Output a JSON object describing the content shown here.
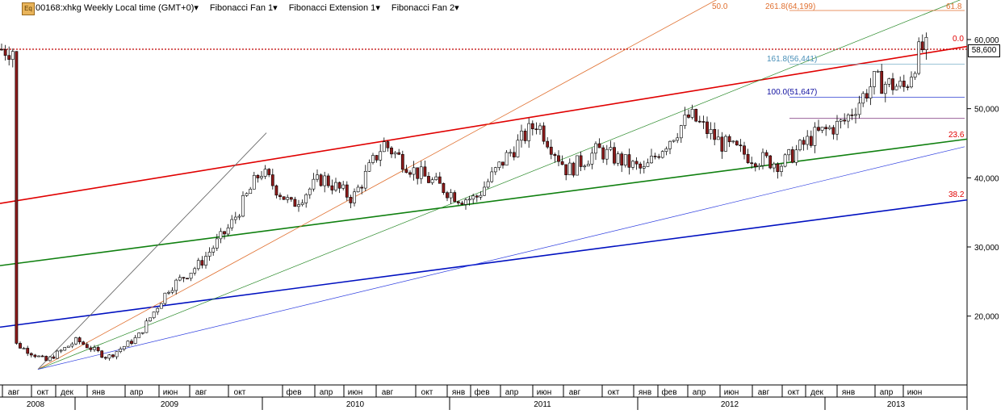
{
  "header": {
    "symbol_title": "00168:xhkg Weekly Local time (GMT+0)",
    "tool_1": "Fibonacci Fan 1",
    "tool_2": "Fibonacci Extension 1",
    "tool_3": "Fibonacci Fan 2",
    "logo_text": "Eq"
  },
  "price_tag": "58,600",
  "colors": {
    "up_candle": "#ffffff",
    "down_candle": "#8b1a1a",
    "red_line": "#e00000",
    "green_line": "#108010",
    "blue_line": "#0010c0",
    "price_line": "#c00000",
    "fib_orange": "#e07030",
    "fib_green": "#2a8a2a",
    "fib_blue": "#3040e0"
  },
  "fib_labels": {
    "top_50": "50.0",
    "top_2618": "261.8(64,199)",
    "top_618": "61.8",
    "r_00": "0.0",
    "r_1618": "161.8(56,441)",
    "r_1000": "100.0(51,647)",
    "r_236": "23.6",
    "r_382": "38.2"
  },
  "chart_data": {
    "type": "candlestick",
    "title": "00168:xhkg Weekly",
    "ylim": [
      11000,
      66000
    ],
    "y_ticks": [
      20000,
      30000,
      40000,
      50000,
      60000
    ],
    "y_tick_labels": [
      "20,000",
      "30,000",
      "40,000",
      "50,000",
      "60,000"
    ],
    "current_price": 58600,
    "month_labels": [
      "авг",
      "окт",
      "дек",
      "янв",
      "апр",
      "июн",
      "авг",
      "окт",
      "фев",
      "апр",
      "июн",
      "авг",
      "окт",
      "янв",
      "фев",
      "апр",
      "июн",
      "авг",
      "окт",
      "янв",
      "фев",
      "апр",
      "июн",
      "авг",
      "окт",
      "дек",
      "янв",
      "апр",
      "июн"
    ],
    "year_labels": [
      "2008",
      "2009",
      "2010",
      "2011",
      "2012",
      "2013"
    ],
    "approx_close_path": [
      {
        "date": "2008-08",
        "value": 16000
      },
      {
        "date": "2008-10",
        "value": 13500
      },
      {
        "date": "2008-12",
        "value": 16500
      },
      {
        "date": "2009-02",
        "value": 14000
      },
      {
        "date": "2009-04",
        "value": 17000
      },
      {
        "date": "2009-06",
        "value": 24000
      },
      {
        "date": "2009-08",
        "value": 27500
      },
      {
        "date": "2009-10",
        "value": 33000
      },
      {
        "date": "2009-12",
        "value": 41000
      },
      {
        "date": "2010-02",
        "value": 36000
      },
      {
        "date": "2010-04",
        "value": 40000
      },
      {
        "date": "2010-06",
        "value": 37000
      },
      {
        "date": "2010-08",
        "value": 45000
      },
      {
        "date": "2010-10",
        "value": 41000
      },
      {
        "date": "2011-01",
        "value": 37000
      },
      {
        "date": "2011-02",
        "value": 37000
      },
      {
        "date": "2011-04",
        "value": 43000
      },
      {
        "date": "2011-06",
        "value": 48000
      },
      {
        "date": "2011-08",
        "value": 41000
      },
      {
        "date": "2011-10",
        "value": 44000
      },
      {
        "date": "2012-01",
        "value": 41000
      },
      {
        "date": "2012-02",
        "value": 44000
      },
      {
        "date": "2012-04",
        "value": 49000
      },
      {
        "date": "2012-06",
        "value": 45000
      },
      {
        "date": "2012-08",
        "value": 43000
      },
      {
        "date": "2012-10",
        "value": 42000
      },
      {
        "date": "2012-12",
        "value": 46000
      },
      {
        "date": "2013-02",
        "value": 48000
      },
      {
        "date": "2013-04",
        "value": 54000
      },
      {
        "date": "2013-06",
        "value": 53000
      },
      {
        "date": "2013-07",
        "value": 58600
      }
    ]
  }
}
